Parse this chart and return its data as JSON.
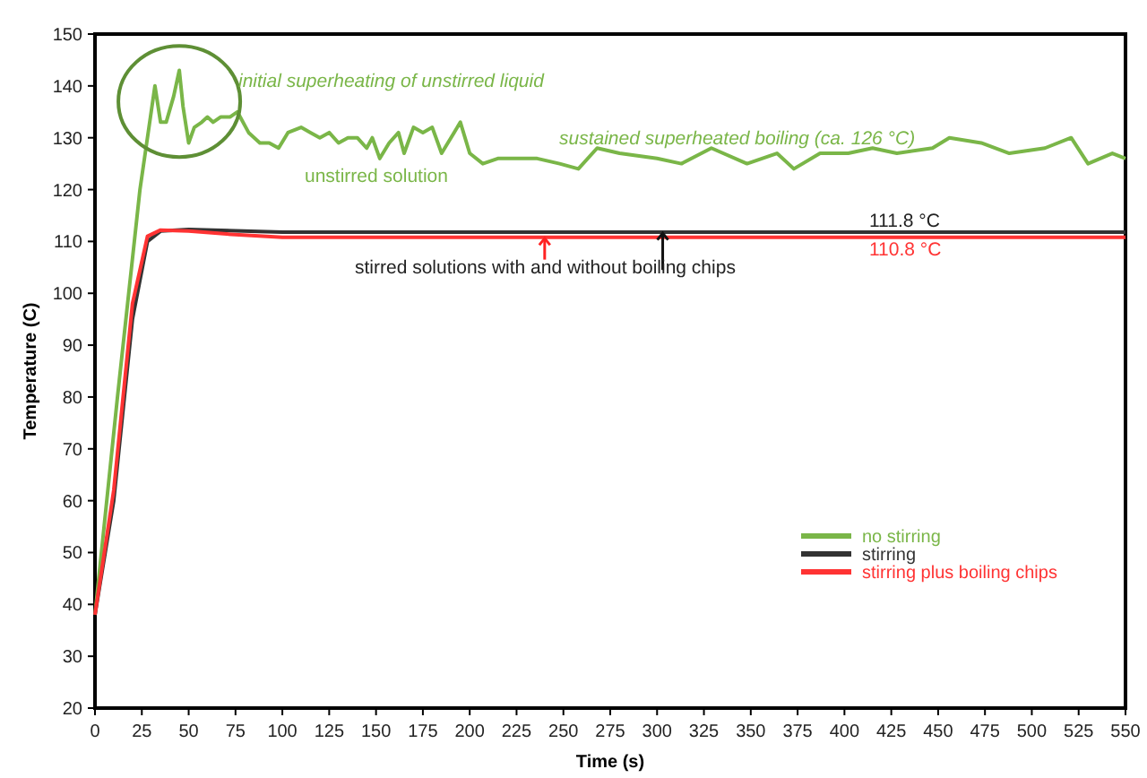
{
  "chart_data": {
    "type": "line",
    "xlabel": "Time (s)",
    "ylabel": "Temperature (C)",
    "xlim": [
      0,
      550
    ],
    "xticks": [
      0,
      25,
      50,
      75,
      100,
      125,
      150,
      175,
      200,
      225,
      250,
      275,
      300,
      325,
      350,
      375,
      400,
      425,
      450,
      475,
      500,
      525,
      550
    ],
    "ylim": [
      20,
      150
    ],
    "yticks": [
      20,
      30,
      40,
      50,
      60,
      70,
      80,
      90,
      100,
      110,
      120,
      130,
      140,
      150
    ],
    "grid": false,
    "legend": "bottom right",
    "line_style": "solid",
    "series": [
      {
        "name": "no stirring",
        "color": "#7ab648",
        "x": [
          0,
          12,
          24,
          30,
          32,
          35,
          38,
          42,
          45,
          47,
          50,
          53,
          57,
          60,
          63,
          67,
          72,
          76,
          82,
          88,
          93,
          98,
          103,
          110,
          115,
          120,
          125,
          130,
          135,
          140,
          145,
          148,
          152,
          157,
          162,
          165,
          170,
          175,
          180,
          185,
          190,
          195,
          200,
          207,
          215,
          225,
          236,
          248,
          258,
          268,
          280,
          300,
          313,
          329,
          348,
          364,
          373,
          387,
          402,
          415,
          428,
          447,
          456,
          473,
          488,
          507,
          521,
          530,
          543,
          550
        ],
        "values": [
          38,
          80,
          120,
          135,
          140,
          133,
          133,
          138,
          143,
          136,
          129,
          132,
          133,
          134,
          133,
          134,
          134,
          135,
          131,
          129,
          129,
          128,
          131,
          132,
          131,
          130,
          131,
          129,
          130,
          130,
          128,
          130,
          126,
          129,
          131,
          127,
          132,
          131,
          132,
          127,
          130,
          133,
          127,
          125,
          126,
          126,
          126,
          125,
          124,
          128,
          127,
          126,
          125,
          128,
          125,
          127,
          124,
          127,
          127,
          128,
          127,
          128,
          130,
          129,
          127,
          128,
          130,
          125,
          127,
          126
        ]
      },
      {
        "name": "stirring",
        "color": "#333333",
        "x": [
          0,
          10,
          20,
          28,
          35,
          50,
          100,
          200,
          300,
          400,
          550
        ],
        "values": [
          38,
          60,
          95,
          110,
          112,
          112.3,
          111.8,
          111.8,
          111.8,
          111.8,
          111.8
        ]
      },
      {
        "name": "stirring plus boiling chips",
        "color": "#ff3333",
        "x": [
          0,
          10,
          20,
          28,
          35,
          50,
          75,
          100,
          200,
          300,
          400,
          550
        ],
        "values": [
          38,
          62,
          98,
          111,
          112.2,
          112,
          111.3,
          110.8,
          110.8,
          110.8,
          110.8,
          110.8
        ]
      }
    ],
    "annotations": [
      "initial superheating of unstirred liquid",
      "sustained superheated boiling (ca. 126 °C)",
      "unstirred solution",
      "stirred solutions with and without boiling chips",
      "111.8 °C",
      "110.8 °C"
    ]
  }
}
